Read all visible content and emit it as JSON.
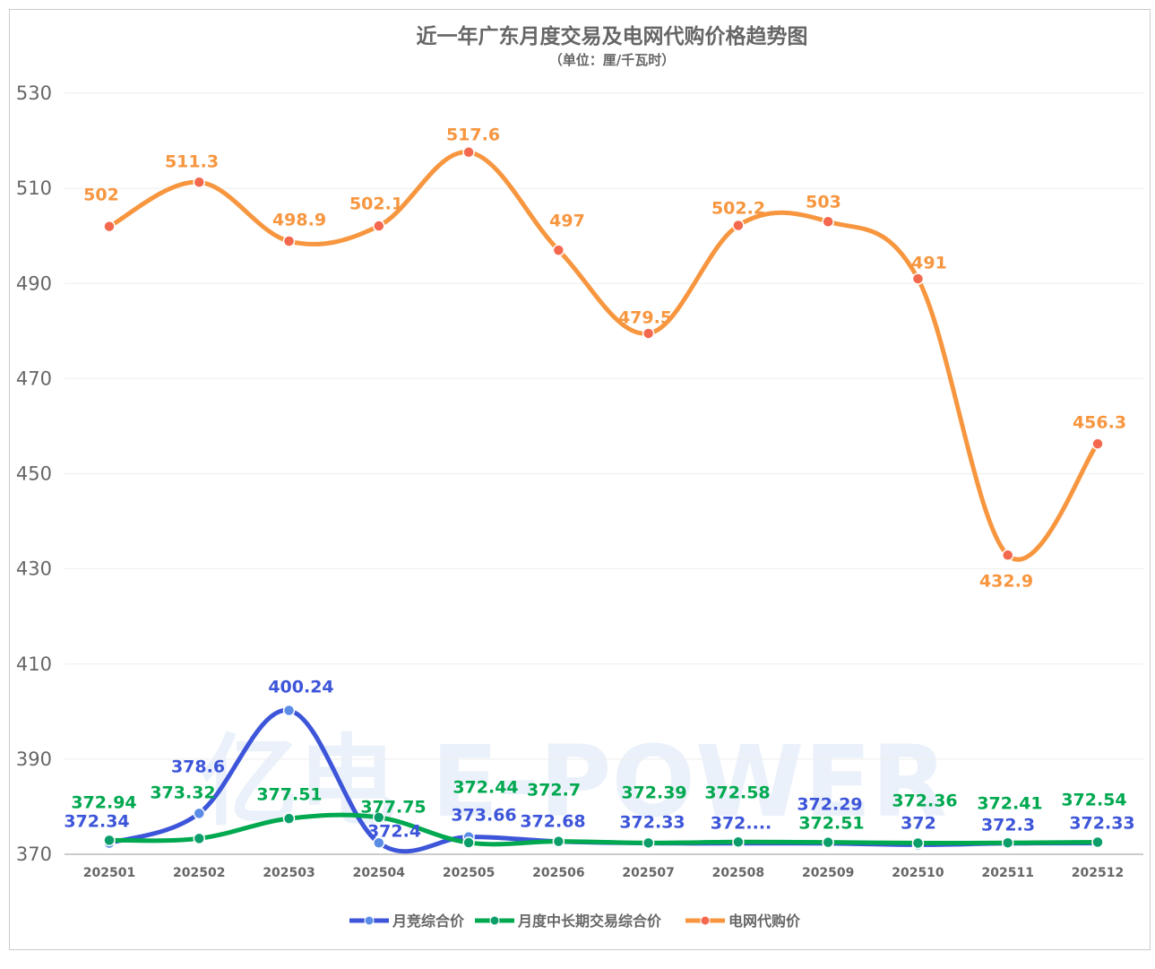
{
  "chart_data": {
    "type": "line",
    "title": "近一年广东月度交易及电网代购价格趋势图",
    "subtitle": "（单位：厘/千瓦时）",
    "xlabel": "",
    "ylabel": "",
    "categories": [
      "202501",
      "202502",
      "202503",
      "202504",
      "202505",
      "202506",
      "202507",
      "202508",
      "202509",
      "202510",
      "202511",
      "202512"
    ],
    "ylim": [
      370,
      530
    ],
    "yticks": [
      370,
      390,
      410,
      430,
      450,
      470,
      490,
      510,
      530
    ],
    "grid": true,
    "smooth": true,
    "legend_position": "bottom",
    "series": [
      {
        "name": "月竞综合价",
        "color": "#3d55d9",
        "values": [
          372.34,
          378.6,
          400.24,
          372.4,
          373.66,
          372.68,
          372.33,
          372.3,
          372.29,
          372,
          372.3,
          372.33
        ],
        "labels": [
          "372.34",
          "378.6",
          "400.24",
          "372.4",
          "373.66",
          "372.68",
          "372.33",
          "372....",
          "372.29",
          "372",
          "372.3",
          "372.33"
        ]
      },
      {
        "name": "月度中长期交易综合价",
        "color": "#00a84f",
        "values": [
          372.94,
          373.32,
          377.51,
          377.75,
          372.44,
          372.7,
          372.39,
          372.58,
          372.51,
          372.36,
          372.41,
          372.54
        ],
        "labels": [
          "372.94",
          "373.32",
          "377.51",
          "377.75",
          "372.44",
          "372.7",
          "372.39",
          "372.58",
          "372.51",
          "372.36",
          "372.41",
          "372.54"
        ]
      },
      {
        "name": "电网代购价",
        "color": "#f7963f",
        "values": [
          502,
          511.3,
          498.9,
          502.1,
          517.6,
          497,
          479.5,
          502.2,
          503,
          491,
          432.9,
          456.3
        ],
        "labels": [
          "502",
          "511.3",
          "498.9",
          "502.1",
          "517.6",
          "497",
          "479.5",
          "502.2",
          "503",
          "491",
          "432.9",
          "456.3"
        ]
      }
    ]
  },
  "watermark": "亿电 E-POWER"
}
